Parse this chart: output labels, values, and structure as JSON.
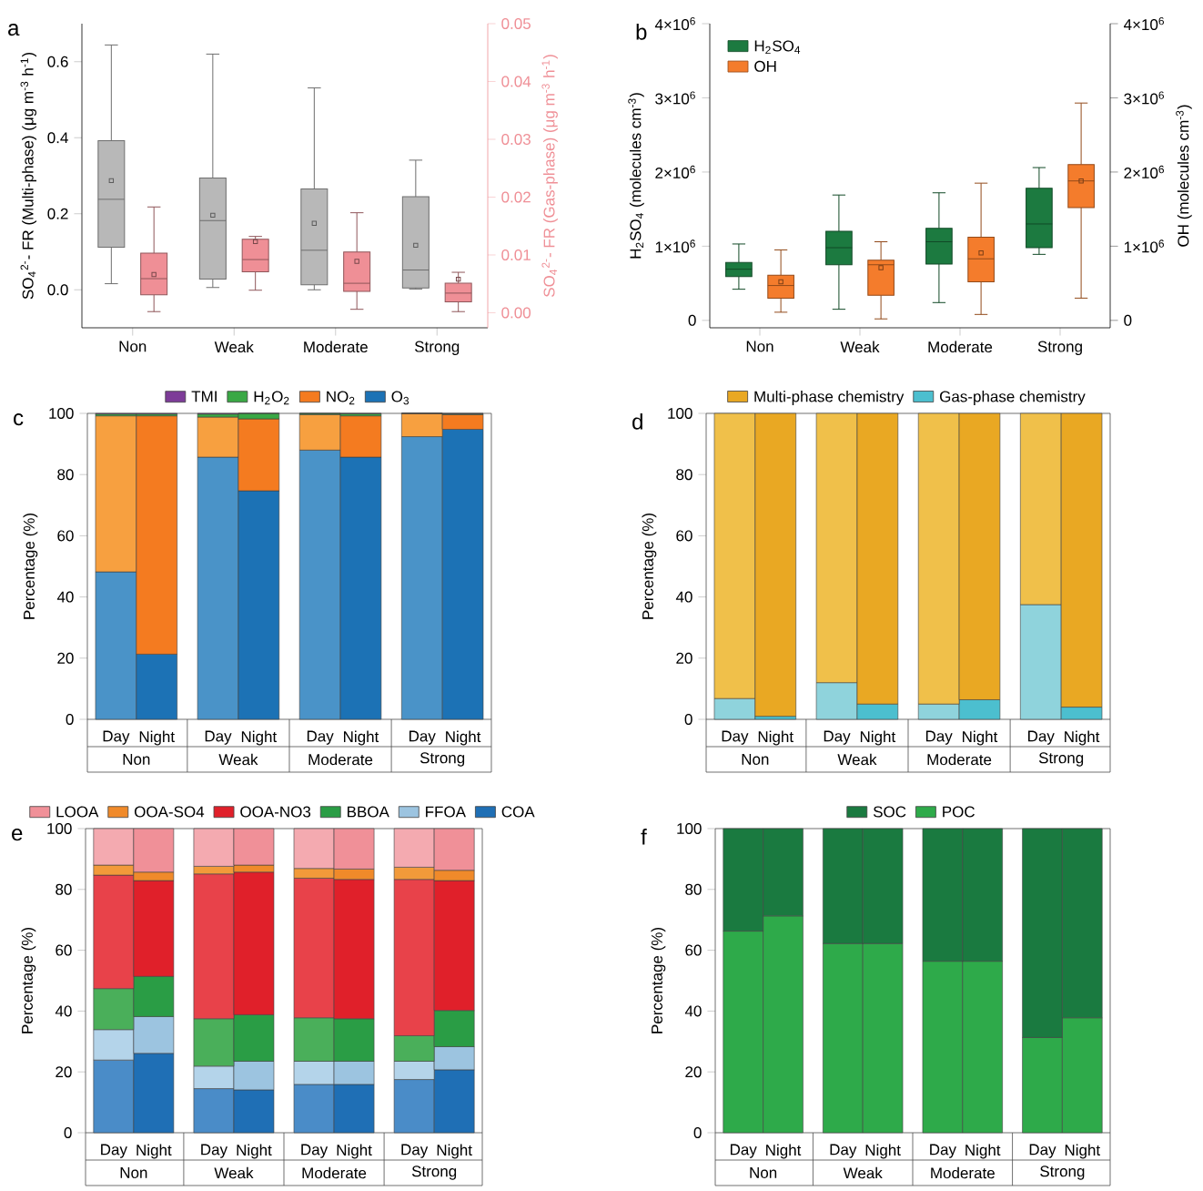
{
  "chart_data": [
    {
      "type": "box",
      "title": "a",
      "categories": [
        "Non",
        "Weak",
        "Moderate",
        "Strong"
      ],
      "ylabel": "SO$_{4}$$^{2-}$- FR (Multi-phase) (μg m$^{-3}$ h$^{-1}$)",
      "y2label": "SO$_{4}$$^{2-}$- FR (Gas-phase)  (μg m$^{-3}$ h$^{-1}$)",
      "ylim": [
        -0.1,
        0.7
      ],
      "yticks": [
        {
          "value": 0,
          "label": "0.0"
        },
        0.2,
        0.4,
        0.6
      ],
      "y2lim": [
        -0.0026,
        0.05
      ],
      "y2ticks": [
        {
          "value": 0,
          "label": "0.00"
        },
        {
          "value": 0.01,
          "label": "0.01"
        },
        {
          "value": 0.02,
          "label": "0.02"
        },
        {
          "value": 0.03,
          "label": "0.03"
        },
        {
          "value": 0.04,
          "label": "0.04"
        },
        {
          "value": 0.05,
          "label": "0.05"
        }
      ],
      "series": [
        {
          "color": "#b8b8b8",
          "boxes": [
            {
              "low": 0.016,
              "q1": 0.112,
              "median": 0.238,
              "q3": 0.392,
              "high": 0.644,
              "mean": 0.287
            },
            {
              "low": 0.006,
              "q1": 0.028,
              "median": 0.182,
              "q3": 0.294,
              "high": 0.62,
              "mean": 0.196
            },
            {
              "low": 0.0,
              "q1": 0.013,
              "median": 0.104,
              "q3": 0.265,
              "high": 0.531,
              "mean": 0.175
            },
            {
              "low": 0.002,
              "q1": 0.005,
              "median": 0.052,
              "q3": 0.245,
              "high": 0.341,
              "mean": 0.117
            }
          ]
        },
        {
          "color": "#ef8f96",
          "axis": "y2",
          "boxes": [
            {
              "low": 0.0002,
              "q1": 0.0031,
              "median": 0.0059,
              "q3": 0.0103,
              "high": 0.0183,
              "mean": 0.0066
            },
            {
              "low": 0.0039,
              "q1": 0.0071,
              "median": 0.0092,
              "q3": 0.0127,
              "high": 0.0132,
              "mean": 0.0123
            },
            {
              "low": 0.0006,
              "q1": 0.0037,
              "median": 0.0051,
              "q3": 0.0105,
              "high": 0.0173,
              "mean": 0.0089
            },
            {
              "low": 0.0002,
              "q1": 0.0019,
              "median": 0.0034,
              "q3": 0.0051,
              "high": 0.007,
              "mean": 0.0058
            }
          ]
        }
      ]
    },
    {
      "type": "box",
      "title": "b",
      "categories": [
        "Non",
        "Weak",
        "Moderate",
        "Strong"
      ],
      "ylabel": "H$_{2}$SO$_{4}$ (molecules cm$^{-3}$)",
      "y2label": "OH (molecules cm$^{-3}$)",
      "ylim": [
        -100000,
        4000000
      ],
      "yticks": [
        0,
        {
          "value": 1000000,
          "label": "1×10$^{6}$"
        },
        {
          "value": 2000000,
          "label": "2×10$^{6}$"
        },
        {
          "value": 3000000,
          "label": "3×10$^{6}$"
        },
        {
          "value": 4000000,
          "label": "4×10$^{6}$"
        }
      ],
      "y2lim": [
        -100000,
        4000000
      ],
      "y2ticks": [
        0,
        {
          "value": 1000000,
          "label": "1×10$^{6}$"
        },
        {
          "value": 2000000,
          "label": "2×10$^{6}$"
        },
        {
          "value": 3000000,
          "label": "3×10$^{6}$"
        },
        {
          "value": 4000000,
          "label": "4×10$^{6}$"
        }
      ],
      "legend": "top left",
      "series": [
        {
          "name": "H$_{2}$SO$_{4}$",
          "color": "#1c7a40",
          "boxes": [
            {
              "low": 420000,
              "q1": 590000,
              "median": 690000,
              "q3": 780000,
              "high": 1030000
            },
            {
              "low": 150000,
              "q1": 750000,
              "median": 980000,
              "q3": 1200000,
              "high": 1690000
            },
            {
              "low": 240000,
              "q1": 760000,
              "median": 1060000,
              "q3": 1240000,
              "high": 1720000
            },
            {
              "low": 890000,
              "q1": 980000,
              "median": 1300000,
              "q3": 1780000,
              "high": 2060000
            }
          ]
        },
        {
          "name": "OH",
          "color": "#f47c2c",
          "axis": "y2",
          "boxes": [
            {
              "low": 110000,
              "q1": 300000,
              "median": 470000,
              "q3": 610000,
              "high": 950000,
              "mean": 520000
            },
            {
              "low": 20000,
              "q1": 340000,
              "median": 750000,
              "q3": 810000,
              "high": 1060000,
              "mean": 710000
            },
            {
              "low": 80000,
              "q1": 520000,
              "median": 830000,
              "q3": 1120000,
              "high": 1850000,
              "mean": 910000
            },
            {
              "low": 300000,
              "q1": 1520000,
              "median": 1880000,
              "q3": 2100000,
              "high": 2930000,
              "mean": 1880000
            }
          ]
        }
      ]
    },
    {
      "type": "bar",
      "stacked": true,
      "title": "c",
      "categories": [
        "Day",
        "Night",
        "Day",
        "Night",
        "Day",
        "Night",
        "Day",
        "Night"
      ],
      "annotations": [
        "Non",
        "Weak",
        "Moderate",
        "Strong"
      ],
      "ylabel": "Percentage (%)",
      "ylim": [
        0,
        100
      ],
      "yticks": [
        0,
        20,
        40,
        60,
        80,
        100
      ],
      "legend": "top",
      "series": [
        {
          "name": "O$_{3}$",
          "color": "#1c72b5",
          "colors": [
            "#4a93c8",
            "#1c72b5",
            "#4a93c8",
            "#1c72b5",
            "#4a93c8",
            "#1c72b5",
            "#4a93c8",
            "#1c72b5"
          ],
          "values": [
            48.2,
            21.3,
            85.7,
            74.7,
            88.0,
            85.7,
            92.4,
            94.8
          ]
        },
        {
          "name": "NO$_{2}$",
          "color": "#f47b20",
          "colors": [
            "#f7a040",
            "#f47b20",
            "#f7a040",
            "#f47b20",
            "#f7a040",
            "#f47b20",
            "#f7a040",
            "#f47b20"
          ],
          "values": [
            51.0,
            77.9,
            13.1,
            23.5,
            11.6,
            13.5,
            7.6,
            4.8
          ]
        },
        {
          "name": "H$_{2}$O$_{2}$",
          "color": "#3aa845",
          "values": [
            0.6,
            0.6,
            1.0,
            1.8,
            0.4,
            0.7,
            0,
            0.3
          ]
        },
        {
          "name": "TMI",
          "color": "#7d3c98",
          "values": [
            0.2,
            0.2,
            0.2,
            0,
            0,
            0.1,
            0,
            0.1
          ]
        }
      ]
    },
    {
      "type": "bar",
      "stacked": true,
      "title": "d",
      "categories": [
        "Day",
        "Night",
        "Day",
        "Night",
        "Day",
        "Night",
        "Day",
        "Night"
      ],
      "annotations": [
        "Non",
        "Weak",
        "Moderate",
        "Strong"
      ],
      "ylabel": "Percentage (%)",
      "ylim": [
        0,
        100
      ],
      "yticks": [
        0,
        20,
        40,
        60,
        80,
        100
      ],
      "legend": "top",
      "series": [
        {
          "name": "Gas-phase chemistry",
          "color": "#4cbfcf",
          "colors": [
            "#8fd3dc",
            "#4cbfcf",
            "#8fd3dc",
            "#4cbfcf",
            "#8fd3dc",
            "#4cbfcf",
            "#8fd3dc",
            "#4cbfcf"
          ],
          "values": [
            6.8,
            1.0,
            12.0,
            5.0,
            5.0,
            6.4,
            37.5,
            4.0
          ]
        },
        {
          "name": "Multi-phase chemistry",
          "color": "#e9a823",
          "colors": [
            "#f0c04a",
            "#e9a823",
            "#f0c04a",
            "#e9a823",
            "#f0c04a",
            "#e9a823",
            "#f0c04a",
            "#e9a823"
          ],
          "values": [
            93.2,
            99.0,
            88.0,
            95.0,
            95.0,
            93.6,
            62.5,
            96.0
          ]
        }
      ]
    },
    {
      "type": "bar",
      "stacked": true,
      "title": "e",
      "categories": [
        "Day",
        "Night",
        "Day",
        "Night",
        "Day",
        "Night",
        "Day",
        "Night"
      ],
      "annotations": [
        "Non",
        "Weak",
        "Moderate",
        "Strong"
      ],
      "ylabel": "Percentage (%)",
      "ylim": [
        0,
        100
      ],
      "yticks": [
        0,
        20,
        40,
        60,
        80,
        100
      ],
      "legend": "top",
      "series": [
        {
          "name": "COA",
          "color": "#1f6fb5",
          "colors": [
            "#4a8cc8",
            "#1f6fb5",
            "#4a8cc8",
            "#1f6fb5",
            "#4a8cc8",
            "#1f6fb5",
            "#4a8cc8",
            "#1f6fb5"
          ],
          "values": [
            23.9,
            26.1,
            14.5,
            14.1,
            15.9,
            15.9,
            17.5,
            20.7
          ]
        },
        {
          "name": "FFOA",
          "color": "#9cc4e0",
          "colors": [
            "#b4d4ea",
            "#9cc4e0",
            "#b4d4ea",
            "#9cc4e0",
            "#b4d4ea",
            "#9cc4e0",
            "#b4d4ea",
            "#9cc4e0"
          ],
          "values": [
            10.0,
            12.1,
            7.4,
            9.4,
            7.6,
            7.6,
            6.0,
            7.6
          ]
        },
        {
          "name": "BBOA",
          "color": "#2a9d45",
          "colors": [
            "#4aaf5a",
            "#2a9d45",
            "#4aaf5a",
            "#2a9d45",
            "#4aaf5a",
            "#2a9d45",
            "#4aaf5a",
            "#2a9d45"
          ],
          "values": [
            13.5,
            13.2,
            15.6,
            15.3,
            14.3,
            14.0,
            8.4,
            11.9
          ]
        },
        {
          "name": "OOA-NO3",
          "color": "#e0202a",
          "colors": [
            "#e8424a",
            "#e0202a",
            "#e8424a",
            "#e0202a",
            "#e8424a",
            "#e0202a",
            "#e8424a",
            "#e0202a"
          ],
          "values": [
            37.3,
            31.5,
            47.6,
            46.9,
            45.9,
            45.8,
            51.4,
            42.7
          ]
        },
        {
          "name": "OOA-SO4",
          "color": "#f08a2a",
          "colors": [
            "#f29a3a",
            "#f08a2a",
            "#f29a3a",
            "#f08a2a",
            "#f29a3a",
            "#f08a2a",
            "#f29a3a",
            "#f08a2a"
          ],
          "values": [
            3.3,
            2.8,
            2.5,
            2.3,
            3.2,
            3.4,
            4.0,
            3.4
          ]
        },
        {
          "name": "LOOA",
          "color": "#f09098",
          "colors": [
            "#f4aab0",
            "#f09098",
            "#f4aab0",
            "#f09098",
            "#f4aab0",
            "#f09098",
            "#f4aab0",
            "#f09098"
          ],
          "values": [
            12.0,
            14.3,
            12.4,
            12.0,
            13.1,
            13.3,
            12.7,
            13.7
          ]
        }
      ]
    },
    {
      "type": "bar",
      "stacked": true,
      "title": "f",
      "categories": [
        "Day",
        "Night",
        "Day",
        "Night",
        "Day",
        "Night",
        "Day",
        "Night"
      ],
      "annotations": [
        "Non",
        "Weak",
        "Moderate",
        "Strong"
      ],
      "ylabel": "Percentage (%)",
      "ylim": [
        0,
        100
      ],
      "yticks": [
        0,
        20,
        40,
        60,
        80,
        100
      ],
      "legend": "top",
      "series": [
        {
          "name": "POC",
          "color": "#2eaa4a",
          "values": [
            66.3,
            71.3,
            62.2,
            62.2,
            56.4,
            56.4,
            31.3,
            37.8
          ]
        },
        {
          "name": "SOC",
          "color": "#1a7a40",
          "values": [
            33.7,
            28.7,
            37.8,
            37.8,
            43.6,
            43.6,
            68.7,
            62.2
          ]
        }
      ]
    }
  ]
}
